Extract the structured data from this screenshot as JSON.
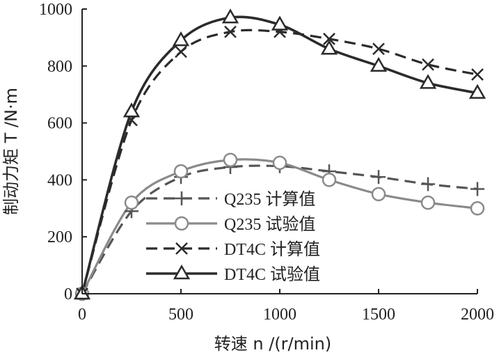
{
  "chart_data": {
    "type": "line",
    "title": "",
    "xlabel": "转速 n /(r/min)",
    "ylabel": "制动力矩 T /N·m",
    "xlim": [
      0,
      2000
    ],
    "ylim": [
      0,
      1000
    ],
    "xticks": [
      0,
      500,
      1000,
      1500,
      2000
    ],
    "yticks": [
      0,
      200,
      400,
      600,
      800,
      1000
    ],
    "grid": false,
    "legend_position": "bottom-center",
    "x": [
      0,
      250,
      500,
      750,
      1000,
      1250,
      1500,
      1750,
      2000
    ],
    "series": [
      {
        "name": "Q235 计算值",
        "values": [
          0,
          290,
          410,
          445,
          448,
          430,
          410,
          385,
          368
        ],
        "color": "#555555",
        "line_style": "dashed",
        "marker": "plus"
      },
      {
        "name": "Q235 试验值",
        "values": [
          0,
          320,
          430,
          470,
          460,
          400,
          350,
          320,
          300
        ],
        "color": "#8a8a8a",
        "line_style": "solid",
        "marker": "circle"
      },
      {
        "name": "DT4C 计算值",
        "values": [
          0,
          610,
          850,
          920,
          920,
          895,
          860,
          805,
          770
        ],
        "color": "#2b2b2b",
        "line_style": "dashed",
        "marker": "x"
      },
      {
        "name": "DT4C 试验值",
        "values": [
          0,
          640,
          890,
          970,
          945,
          860,
          800,
          740,
          705
        ],
        "color": "#2b2b2b",
        "line_style": "solid",
        "marker": "triangle"
      }
    ]
  }
}
